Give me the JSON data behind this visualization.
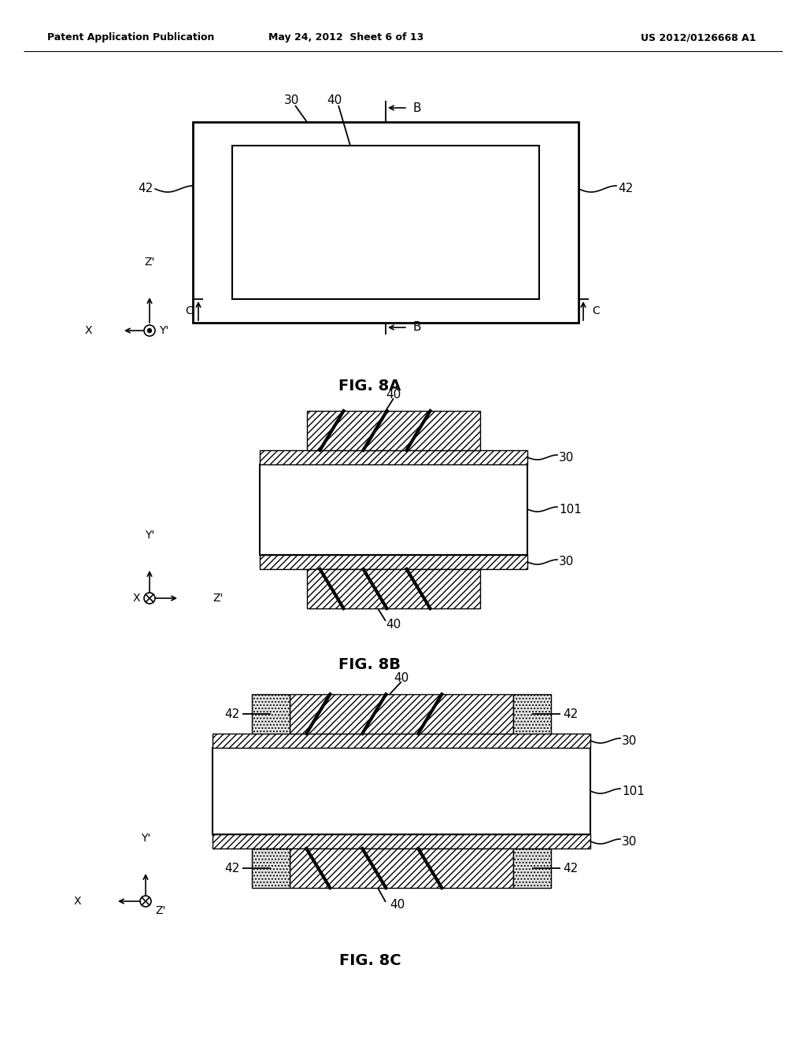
{
  "bg_color": "#ffffff",
  "header_left": "Patent Application Publication",
  "header_mid": "May 24, 2012  Sheet 6 of 13",
  "header_right": "US 2012/0126668 A1"
}
